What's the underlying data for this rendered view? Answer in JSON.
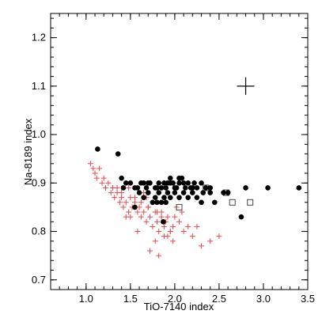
{
  "chart_data": {
    "type": "scatter",
    "title": "",
    "xlabel": "TiO-7140 index",
    "ylabel": "Na-8189 index",
    "xlim": [
      0.6,
      3.5
    ],
    "ylim": [
      0.68,
      1.25
    ],
    "xticks": [
      "1.0",
      "1.5",
      "2.0",
      "2.5",
      "3.0",
      "3.5"
    ],
    "yticks": [
      "0.7",
      "0.8",
      "0.9",
      "1.0",
      "1.1",
      "1.2"
    ],
    "grid": false,
    "legend": "none",
    "colors": {
      "filled_circle": "#000000",
      "plus": "#e8474a",
      "open_square": "#444444",
      "error_bar": "#000000"
    },
    "series": [
      {
        "marker": "filled-circle",
        "x": [
          1.13,
          1.36,
          1.4,
          1.42,
          1.45,
          1.5,
          1.55,
          1.58,
          1.62,
          1.65,
          1.68,
          1.7,
          1.72,
          1.78,
          1.8,
          1.82,
          1.85,
          1.88,
          1.9,
          1.92,
          1.95,
          1.98,
          2.0,
          2.02,
          2.05,
          2.08,
          2.1,
          2.12,
          2.15,
          2.18,
          2.2,
          2.22,
          2.25,
          2.3,
          2.35,
          2.4,
          2.6,
          1.6,
          1.7,
          1.82,
          1.92,
          2.0,
          2.1,
          2.2,
          1.65,
          1.78,
          1.88,
          1.95,
          2.05,
          2.25,
          2.32,
          2.45,
          2.55,
          2.75,
          2.8,
          3.05,
          3.4,
          1.75,
          1.8,
          1.85,
          1.9,
          2.3,
          1.87,
          2.15,
          2.05,
          1.95,
          2.4,
          1.55
        ],
        "y": [
          0.97,
          0.96,
          0.91,
          0.89,
          0.9,
          0.9,
          0.89,
          0.89,
          0.9,
          0.9,
          0.89,
          0.9,
          0.9,
          0.89,
          0.89,
          0.9,
          0.89,
          0.9,
          0.89,
          0.9,
          0.9,
          0.9,
          0.89,
          0.89,
          0.9,
          0.91,
          0.9,
          0.89,
          0.9,
          0.89,
          0.89,
          0.9,
          0.89,
          0.9,
          0.89,
          0.89,
          0.88,
          0.88,
          0.88,
          0.88,
          0.88,
          0.88,
          0.88,
          0.88,
          0.87,
          0.87,
          0.87,
          0.87,
          0.87,
          0.87,
          0.88,
          0.86,
          0.88,
          0.83,
          0.89,
          0.89,
          0.89,
          0.86,
          0.86,
          0.86,
          0.86,
          0.86,
          0.82,
          0.87,
          0.91,
          0.91,
          0.88,
          0.85
        ]
      },
      {
        "marker": "plus",
        "x": [
          1.05,
          1.08,
          1.1,
          1.12,
          1.15,
          1.18,
          1.2,
          1.22,
          1.25,
          1.28,
          1.3,
          1.32,
          1.35,
          1.38,
          1.4,
          1.42,
          1.45,
          1.48,
          1.5,
          1.52,
          1.55,
          1.58,
          1.6,
          1.62,
          1.65,
          1.68,
          1.7,
          1.72,
          1.75,
          1.78,
          1.8,
          1.82,
          1.85,
          1.88,
          1.9,
          1.92,
          1.95,
          1.98,
          2.0,
          2.05,
          2.1,
          2.2,
          2.25,
          2.3,
          2.4,
          2.5,
          1.45,
          1.55,
          1.62,
          1.7,
          1.78,
          1.88,
          1.95,
          2.02,
          1.35,
          1.5,
          1.65,
          1.75,
          1.85,
          1.92,
          2.08,
          2.15,
          1.4,
          1.58,
          1.72,
          1.82,
          1.98,
          1.48,
          1.68,
          1.8
        ],
        "y": [
          0.94,
          0.93,
          0.92,
          0.91,
          0.93,
          0.9,
          0.91,
          0.89,
          0.9,
          0.88,
          0.89,
          0.87,
          0.88,
          0.86,
          0.87,
          0.85,
          0.86,
          0.84,
          0.87,
          0.85,
          0.86,
          0.84,
          0.85,
          0.83,
          0.84,
          0.82,
          0.85,
          0.83,
          0.81,
          0.84,
          0.82,
          0.8,
          0.83,
          0.81,
          0.82,
          0.79,
          0.8,
          0.81,
          0.83,
          0.82,
          0.8,
          0.79,
          0.81,
          0.77,
          0.78,
          0.79,
          0.83,
          0.87,
          0.86,
          0.85,
          0.78,
          0.79,
          0.8,
          0.85,
          0.89,
          0.83,
          0.88,
          0.86,
          0.84,
          0.83,
          0.84,
          0.81,
          0.88,
          0.8,
          0.76,
          0.75,
          0.78,
          0.89,
          0.87,
          0.84
        ]
      },
      {
        "marker": "open-square",
        "x": [
          2.05,
          2.35,
          2.58,
          2.65,
          2.85
        ],
        "y": [
          0.85,
          0.89,
          0.88,
          0.86,
          0.86
        ]
      }
    ],
    "error_bar": {
      "x": 2.8,
      "y": 1.1
    }
  }
}
